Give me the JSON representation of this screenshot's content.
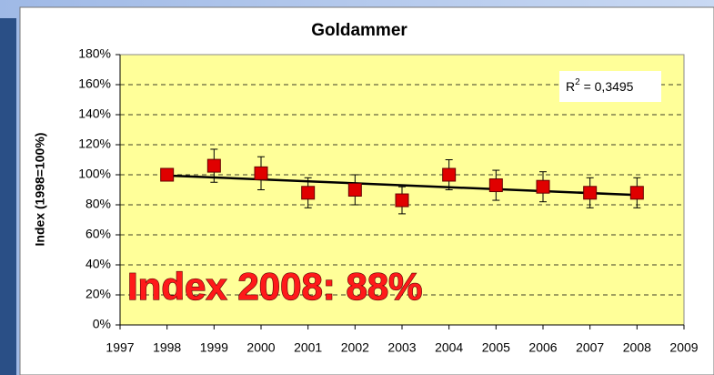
{
  "chart_data": {
    "type": "scatter",
    "title": "Goldammer",
    "y_label": "Index (1998=100%)",
    "x": [
      1998,
      1999,
      2000,
      2001,
      2002,
      2003,
      2004,
      2005,
      2006,
      2007,
      2008
    ],
    "values": [
      100,
      106,
      101,
      88,
      90,
      83,
      100,
      93,
      92,
      88,
      88
    ],
    "errors": [
      0,
      11,
      11,
      10,
      10,
      9,
      10,
      10,
      10,
      10,
      10
    ],
    "color": "#e00000",
    "trendline": {
      "x": [
        1998,
        2008
      ],
      "values": [
        99.5,
        86.5
      ]
    },
    "r_squared": {
      "label": "R",
      "superscript": "2",
      "text": " = 0,3495"
    },
    "annotation": "Index 2008: 88%",
    "xlim": [
      1997,
      2009
    ],
    "xticks": [
      1997,
      1998,
      1999,
      2000,
      2001,
      2002,
      2003,
      2004,
      2005,
      2006,
      2007,
      2008,
      2009
    ],
    "ylim": [
      0,
      180
    ],
    "yticks": [
      {
        "value": 0,
        "label": "0%"
      },
      {
        "value": 20,
        "label": "20%"
      },
      {
        "value": 40,
        "label": "40%"
      },
      {
        "value": 60,
        "label": "60%"
      },
      {
        "value": 80,
        "label": "80%"
      },
      {
        "value": 100,
        "label": "100%"
      },
      {
        "value": 120,
        "label": "120%"
      },
      {
        "value": 140,
        "label": "140%"
      },
      {
        "value": 160,
        "label": "160%"
      },
      {
        "value": 180,
        "label": "180%"
      }
    ],
    "grid": true
  }
}
